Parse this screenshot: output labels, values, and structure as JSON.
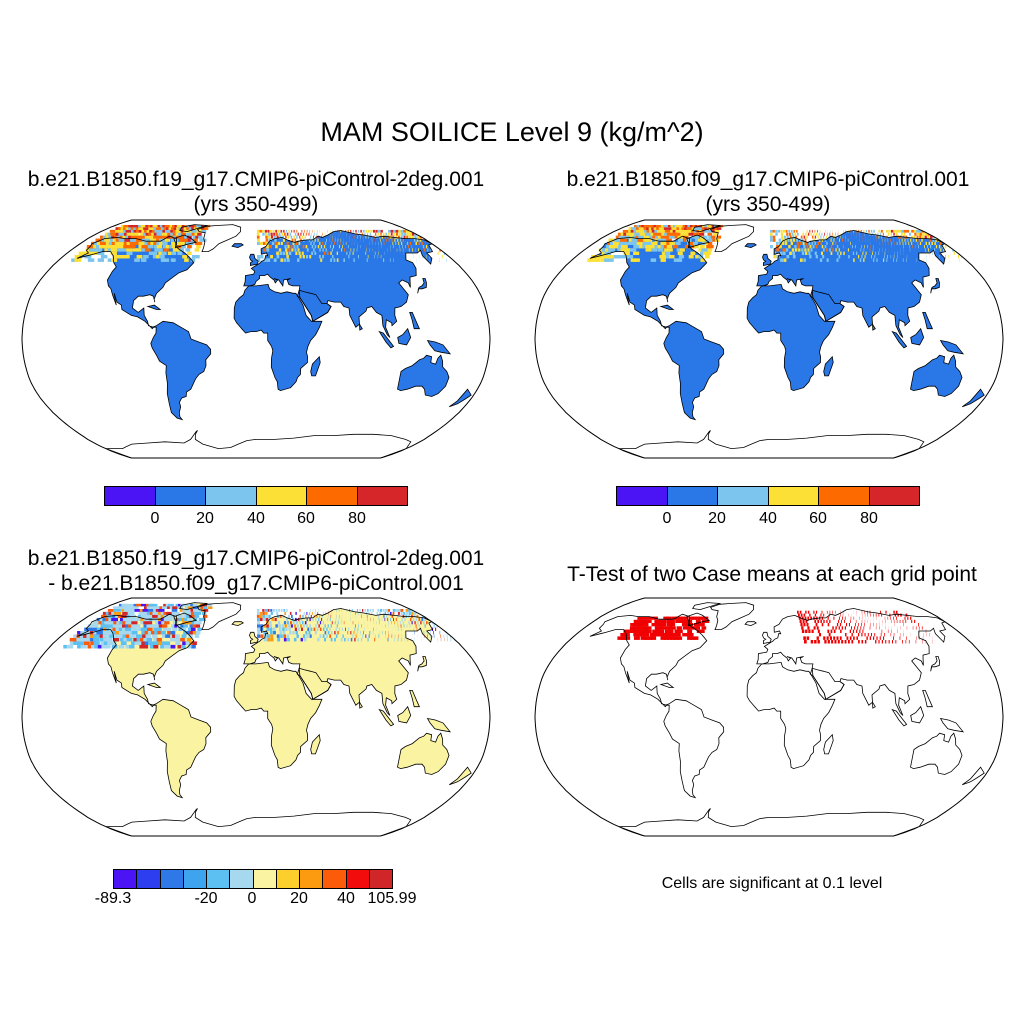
{
  "figure": {
    "title": "MAM SOILICE Level 9 (kg/m^2)"
  },
  "panels": [
    {
      "title_line1": "b.e21.B1850.f19_g17.CMIP6-piControl-2deg.001",
      "title_line2": "(yrs 350-499)",
      "colorbar_labels": [
        "0",
        "20",
        "40",
        "60",
        "80"
      ]
    },
    {
      "title_line1": "b.e21.B1850.f09_g17.CMIP6-piControl.001",
      "title_line2": "(yrs 350-499)",
      "colorbar_labels": [
        "0",
        "20",
        "40",
        "60",
        "80"
      ]
    },
    {
      "title_line1": "b.e21.B1850.f19_g17.CMIP6-piControl-2deg.001",
      "title_line2": "- b.e21.B1850.f09_g17.CMIP6-piControl.001",
      "colorbar_labels": [
        "-89.3",
        "-20",
        "0",
        "20",
        "40",
        "105.99"
      ]
    },
    {
      "title_line1": "T-Test of two Case means at each grid point",
      "note": "Cells are significant at 0.1 level"
    }
  ],
  "colors": {
    "abs_scale": [
      "#4a14f5",
      "#2a78e8",
      "#7cc5ee",
      "#fce036",
      "#fd6a00",
      "#d6262a"
    ],
    "diff_scale": [
      "#4a14f5",
      "#2d3ef0",
      "#2e78e8",
      "#3ea4ee",
      "#5cc0f2",
      "#a6d8f0",
      "#faf3a2",
      "#fccf2c",
      "#fc9a10",
      "#fc5c0a",
      "#f20c0c",
      "#d0262a"
    ],
    "land": "#2a78e8",
    "land_diff": "#faf3a2",
    "significant": "#f00000"
  }
}
